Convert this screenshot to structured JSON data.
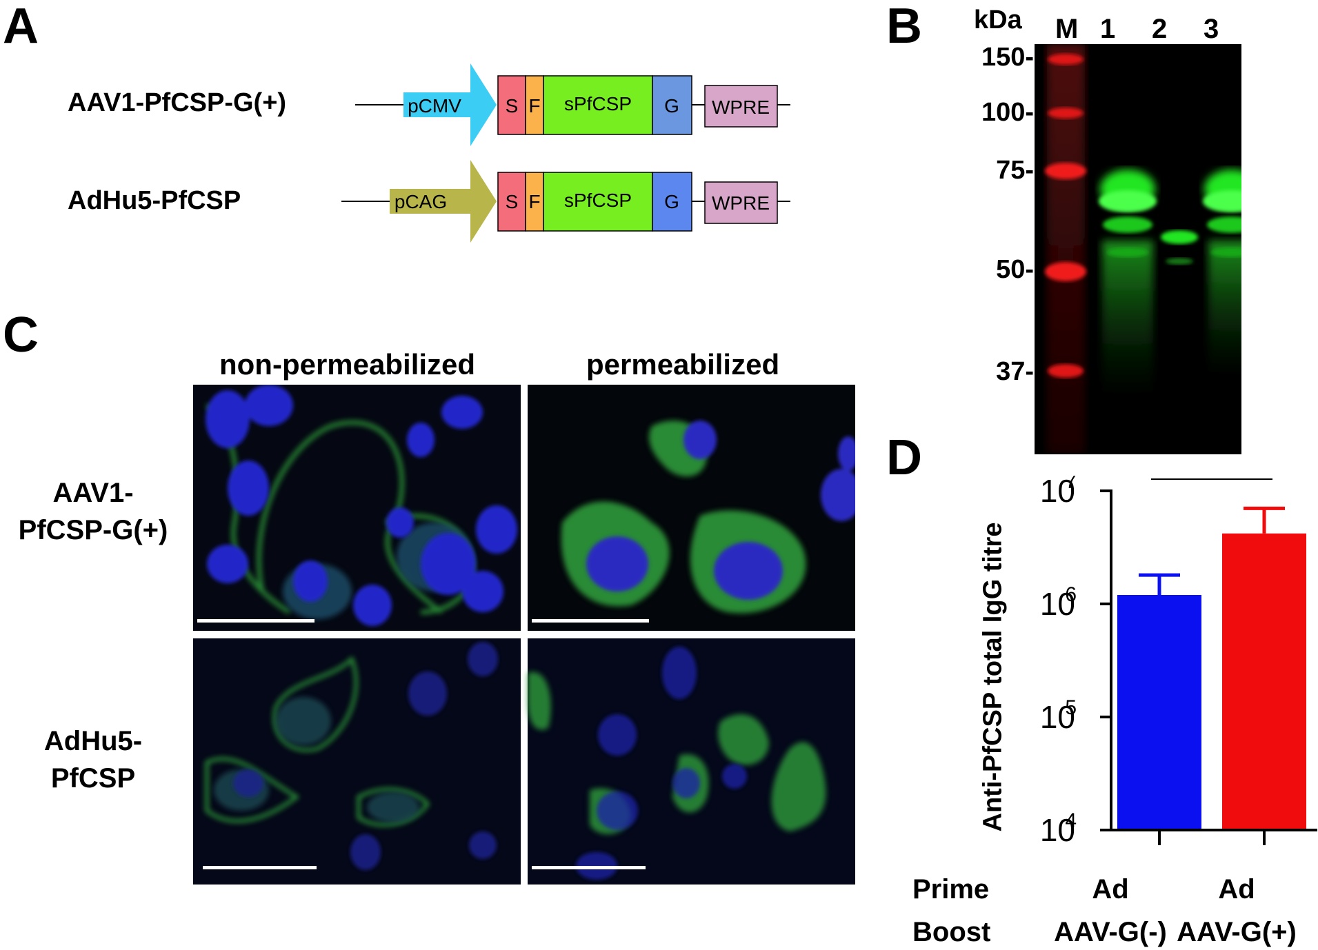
{
  "panels": {
    "A": {
      "letter": "A",
      "constructs": [
        {
          "name": "AAV1-PfCSP-G(+)",
          "promoter": "pCMV",
          "promoter_color": "#3ccdf5",
          "segments": [
            {
              "label": "S",
              "color": "#f46d7a"
            },
            {
              "label": "F",
              "color": "#fbb24a"
            },
            {
              "label": "sPfCSP",
              "color": "#77ee1f"
            },
            {
              "label": "G",
              "color": "#6a97df"
            }
          ],
          "terminator": "WPRE",
          "terminator_color": "#d7a6c8"
        },
        {
          "name": "AdHu5-PfCSP",
          "promoter": "pCAG",
          "promoter_color": "#b8b64a",
          "segments": [
            {
              "label": "S",
              "color": "#f46d7a"
            },
            {
              "label": "F",
              "color": "#fbb24a"
            },
            {
              "label": "sPfCSP",
              "color": "#77ee1f"
            },
            {
              "label": "G",
              "color": "#5b87ef"
            }
          ],
          "terminator": "WPRE",
          "terminator_color": "#d7a6c8"
        }
      ]
    },
    "B": {
      "letter": "B",
      "unit_label": "kDa",
      "lanes": [
        "M",
        "1",
        "2",
        "3"
      ],
      "markers": [
        "150-",
        "100-",
        "75-",
        "50-",
        "37-"
      ],
      "ladder_color": "#e01818",
      "band_color": "#22e622"
    },
    "C": {
      "letter": "C",
      "columns": [
        "non-permeabilized",
        "permeabilized"
      ],
      "rows": [
        {
          "line1": "AAV1-",
          "line2": "PfCSP-G(+)"
        },
        {
          "line1": "AdHu5-",
          "line2": "PfCSP"
        }
      ]
    },
    "D": {
      "letter": "D",
      "significance": "*",
      "table_rows": [
        {
          "label": "Prime",
          "values": [
            "Ad",
            "Ad"
          ]
        },
        {
          "label": "Boost",
          "values": [
            "AAV-G(-)",
            "AAV-G(+)"
          ]
        }
      ]
    }
  },
  "chart_data": {
    "type": "bar",
    "ylabel": "Anti-PfCSP total IgG titre",
    "y_scale": "log",
    "ylim": [
      10000,
      10000000
    ],
    "y_ticks": [
      {
        "base": "10",
        "exp": "4",
        "value": 10000
      },
      {
        "base": "10",
        "exp": "5",
        "value": 100000
      },
      {
        "base": "10",
        "exp": "6",
        "value": 1000000
      },
      {
        "base": "10",
        "exp": "7",
        "value": 10000000
      }
    ],
    "categories": [
      "AAV-G(-)",
      "AAV-G(+)"
    ],
    "values": [
      1200000,
      4200000
    ],
    "error_upper": [
      1800000,
      7000000
    ],
    "colors": [
      "#0a10f0",
      "#f00c0c"
    ]
  }
}
